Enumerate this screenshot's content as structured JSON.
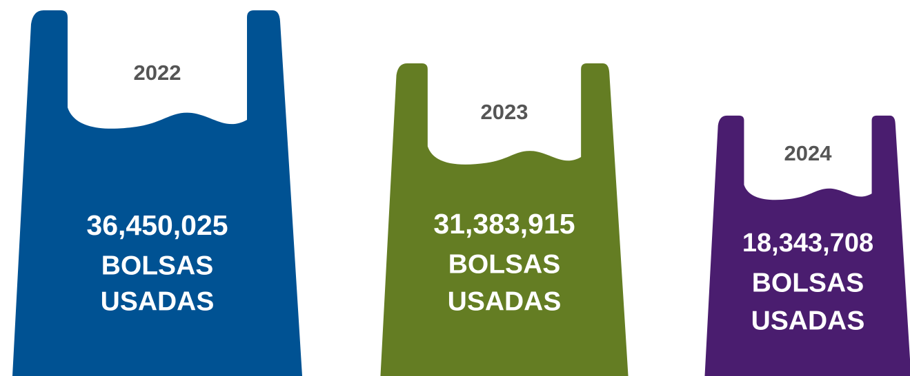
{
  "bags": [
    {
      "year": "2022",
      "count": "36,450,025",
      "color": "#005293"
    },
    {
      "year": "2023",
      "count": "31,383,915",
      "color": "#647d23"
    },
    {
      "year": "2024",
      "count": "18,343,708",
      "color": "#4a1d6f"
    }
  ],
  "unit": [
    "BOLSAS",
    "USADAS"
  ]
}
